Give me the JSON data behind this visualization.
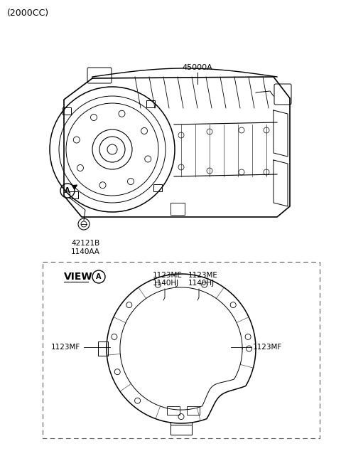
{
  "title": "(2000CC)",
  "bg_color": "#ffffff",
  "label_45000A": "45000A",
  "label_42121B": "42121B",
  "label_1140AA": "1140AA",
  "label_viewA": "VIEW",
  "label_1123ME_1": "1123ME",
  "label_1123ME_2": "1123ME",
  "label_1140HJ_1": "1140HJ",
  "label_1140HJ_2": "1140HJ",
  "label_1123MF_left": "1123MF",
  "label_1123MF_right": "1123MF",
  "font_size_title": 9,
  "font_size_labels": 7.5,
  "font_size_view": 9
}
